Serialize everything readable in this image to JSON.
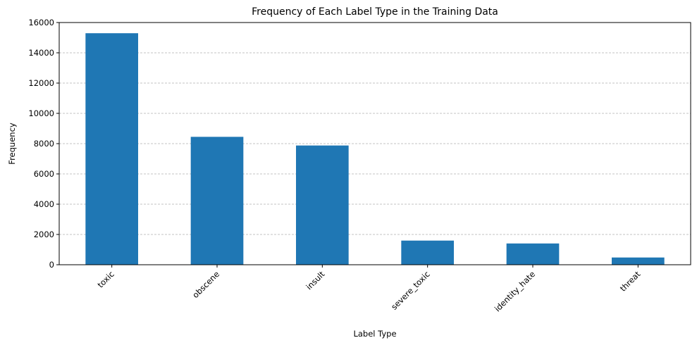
{
  "chart_data": {
    "type": "bar",
    "title": "Frequency of Each Label Type in the Training Data",
    "xlabel": "Label Type",
    "ylabel": "Frequency",
    "categories": [
      "toxic",
      "obscene",
      "insult",
      "severe_toxic",
      "identity_hate",
      "threat"
    ],
    "values": [
      15294,
      8449,
      7877,
      1595,
      1405,
      478
    ],
    "ylim": [
      0,
      16000
    ],
    "yticks": [
      0,
      2000,
      4000,
      6000,
      8000,
      10000,
      12000,
      14000,
      16000
    ],
    "grid": "y-dashed",
    "legend": "none",
    "bar_color": "#1f77b4",
    "grid_color": "#b0b0b0"
  }
}
